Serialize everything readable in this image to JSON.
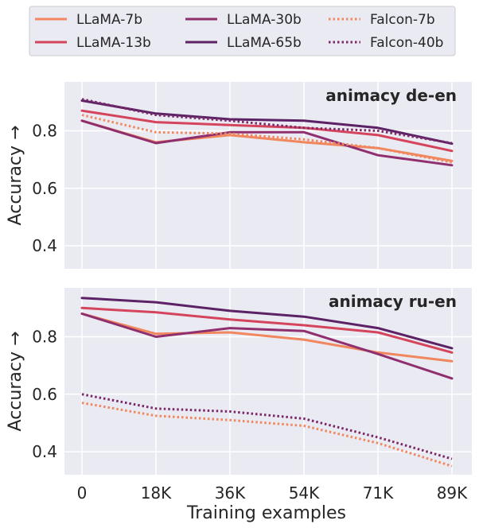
{
  "chart_data": {
    "type": "line",
    "xlabel": "Training examples",
    "x_categories": [
      "0",
      "18K",
      "36K",
      "54K",
      "71K",
      "89K"
    ],
    "legend": {
      "placement": "top-center",
      "columns": 3
    },
    "series_styles": [
      {
        "name": "LLaMA-7b",
        "color": "#f0875f",
        "dash": "solid"
      },
      {
        "name": "LLaMA-13b",
        "color": "#d4445c",
        "dash": "solid"
      },
      {
        "name": "LLaMA-30b",
        "color": "#8f2f6e",
        "dash": "solid"
      },
      {
        "name": "LLaMA-65b",
        "color": "#5c2265",
        "dash": "solid"
      },
      {
        "name": "Falcon-7b",
        "color": "#f0875f",
        "dash": "dotted"
      },
      {
        "name": "Falcon-40b",
        "color": "#7a2868",
        "dash": "dotted"
      }
    ],
    "panels": [
      {
        "title": "animacy de-en",
        "ylabel": "Accuracy →",
        "ylim": [
          0.32,
          0.97
        ],
        "yticks": [
          "0.4",
          "0.6",
          "0.8"
        ],
        "grid": true,
        "series": [
          {
            "name": "LLaMA-7b",
            "values": [
              0.835,
              0.76,
              0.785,
              0.76,
              0.74,
              0.695
            ]
          },
          {
            "name": "LLaMA-13b",
            "values": [
              0.87,
              0.83,
              0.82,
              0.81,
              0.785,
              0.73
            ]
          },
          {
            "name": "LLaMA-30b",
            "values": [
              0.835,
              0.757,
              0.795,
              0.795,
              0.715,
              0.68
            ]
          },
          {
            "name": "LLaMA-65b",
            "values": [
              0.905,
              0.86,
              0.84,
              0.835,
              0.81,
              0.755
            ]
          },
          {
            "name": "Falcon-7b",
            "values": [
              0.855,
              0.795,
              0.79,
              0.77,
              0.74,
              0.69
            ]
          },
          {
            "name": "Falcon-40b",
            "values": [
              0.91,
              0.855,
              0.835,
              0.81,
              0.8,
              0.757
            ]
          }
        ]
      },
      {
        "title": "animacy ru-en",
        "ylabel": "Accuracy →",
        "ylim": [
          0.32,
          0.97
        ],
        "yticks": [
          "0.4",
          "0.6",
          "0.8"
        ],
        "grid": true,
        "series": [
          {
            "name": "LLaMA-7b",
            "values": [
              0.88,
              0.81,
              0.815,
              0.79,
              0.745,
              0.715
            ]
          },
          {
            "name": "LLaMA-13b",
            "values": [
              0.9,
              0.885,
              0.86,
              0.84,
              0.815,
              0.745
            ]
          },
          {
            "name": "LLaMA-30b",
            "values": [
              0.88,
              0.8,
              0.83,
              0.82,
              0.74,
              0.655
            ]
          },
          {
            "name": "LLaMA-65b",
            "values": [
              0.935,
              0.92,
              0.89,
              0.87,
              0.83,
              0.76
            ]
          },
          {
            "name": "Falcon-7b",
            "values": [
              0.57,
              0.525,
              0.51,
              0.49,
              0.43,
              0.35
            ]
          },
          {
            "name": "Falcon-40b",
            "values": [
              0.6,
              0.55,
              0.54,
              0.515,
              0.45,
              0.375
            ]
          }
        ]
      }
    ]
  }
}
